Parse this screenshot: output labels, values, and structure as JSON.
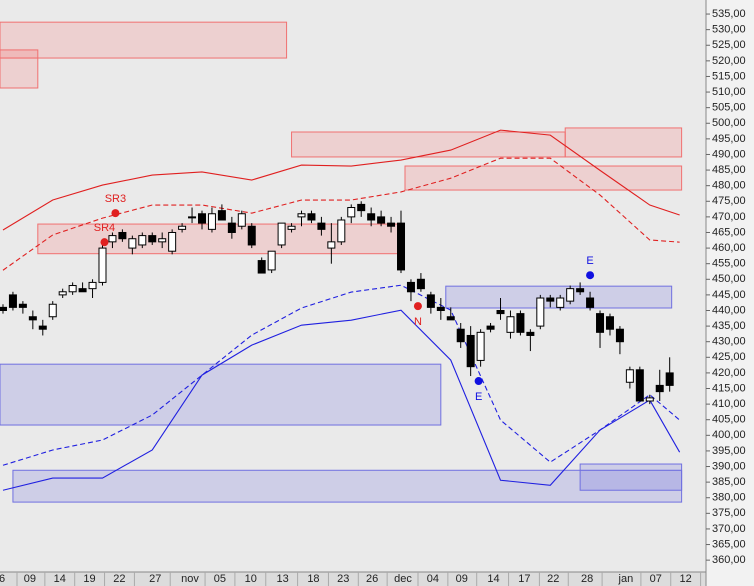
{
  "chart_data": {
    "type": "candlestick",
    "xlim": [
      -0.3,
      70.65
    ],
    "ylim": [
      356.2,
      539.5
    ],
    "yticks": [
      {
        "value": 360,
        "label": "360,00"
      },
      {
        "value": 365,
        "label": "365,00"
      },
      {
        "value": 370,
        "label": "370,00"
      },
      {
        "value": 375,
        "label": "375,00"
      },
      {
        "value": 380,
        "label": "380,00"
      },
      {
        "value": 385,
        "label": "385,00"
      },
      {
        "value": 390,
        "label": "390,00"
      },
      {
        "value": 395,
        "label": "395,00"
      },
      {
        "value": 400,
        "label": "400,00"
      },
      {
        "value": 405,
        "label": "405,00"
      },
      {
        "value": 410,
        "label": "410,00"
      },
      {
        "value": 415,
        "label": "415,00"
      },
      {
        "value": 420,
        "label": "420,00"
      },
      {
        "value": 425,
        "label": "425,00"
      },
      {
        "value": 430,
        "label": "430,00"
      },
      {
        "value": 435,
        "label": "435,00"
      },
      {
        "value": 440,
        "label": "440,00"
      },
      {
        "value": 445,
        "label": "445,00"
      },
      {
        "value": 450,
        "label": "450,00"
      },
      {
        "value": 455,
        "label": "455,00"
      },
      {
        "value": 460,
        "label": "460,00"
      },
      {
        "value": 465,
        "label": "465,00"
      },
      {
        "value": 470,
        "label": "470,00"
      },
      {
        "value": 475,
        "label": "475,00"
      },
      {
        "value": 480,
        "label": "480,00"
      },
      {
        "value": 485,
        "label": "485,00"
      },
      {
        "value": 490,
        "label": "490,00"
      },
      {
        "value": 495,
        "label": "495,00"
      },
      {
        "value": 500,
        "label": "500,00"
      },
      {
        "value": 505,
        "label": "505,00"
      },
      {
        "value": 510,
        "label": "510,00"
      },
      {
        "value": 515,
        "label": "515,00"
      },
      {
        "value": 520,
        "label": "520,00"
      },
      {
        "value": 525,
        "label": "525,00"
      },
      {
        "value": 530,
        "label": "530,00"
      },
      {
        "value": 535,
        "label": "535,00"
      }
    ],
    "xticks": [
      {
        "value": -0.1,
        "label": "6"
      },
      {
        "value": 2.7,
        "label": "09"
      },
      {
        "value": 5.7,
        "label": "14"
      },
      {
        "value": 8.7,
        "label": "19"
      },
      {
        "value": 11.7,
        "label": "22"
      },
      {
        "value": 15.3,
        "label": "27"
      },
      {
        "value": 18.8,
        "label": "nov"
      },
      {
        "value": 21.8,
        "label": "05"
      },
      {
        "value": 24.9,
        "label": "10"
      },
      {
        "value": 28.1,
        "label": "13"
      },
      {
        "value": 31.2,
        "label": "18"
      },
      {
        "value": 34.2,
        "label": "23"
      },
      {
        "value": 37.1,
        "label": "26"
      },
      {
        "value": 40.2,
        "label": "dec"
      },
      {
        "value": 43.2,
        "label": "04"
      },
      {
        "value": 46.1,
        "label": "09"
      },
      {
        "value": 49.3,
        "label": "14"
      },
      {
        "value": 52.4,
        "label": "17"
      },
      {
        "value": 55.3,
        "label": "22"
      },
      {
        "value": 58.7,
        "label": "28"
      },
      {
        "value": 62.6,
        "label": "jan"
      },
      {
        "value": 65.6,
        "label": "07"
      },
      {
        "value": 68.6,
        "label": "12"
      }
    ],
    "candles": {
      "open": [
        441,
        445,
        442,
        438,
        435,
        438,
        445,
        446,
        447,
        447,
        449,
        462,
        465,
        460,
        461,
        464,
        462,
        459,
        466,
        470,
        471,
        466,
        472,
        468,
        467,
        467,
        456,
        453,
        461,
        466,
        470,
        471,
        468,
        460,
        462,
        470,
        474,
        471,
        470,
        468,
        468,
        449,
        450,
        445,
        441,
        438,
        434,
        432,
        424,
        435,
        440,
        433,
        439,
        433,
        435,
        444,
        441,
        443,
        447,
        444,
        439,
        438,
        434,
        417,
        421,
        411,
        416,
        420
      ],
      "high": [
        442,
        446,
        443,
        440,
        437,
        443,
        447,
        449,
        449,
        450,
        461,
        465,
        466,
        464,
        465,
        465,
        465,
        466,
        468,
        473,
        472,
        473,
        474,
        470,
        472,
        468,
        457,
        459,
        468,
        468,
        472,
        472,
        470,
        468,
        470,
        474,
        475,
        473,
        472,
        470,
        472,
        450,
        452,
        446,
        444,
        441,
        436,
        435,
        434,
        436,
        444,
        440,
        440,
        434,
        445,
        445,
        445,
        448,
        449,
        446,
        440,
        439,
        435,
        422,
        422,
        413,
        421,
        425
      ],
      "low": [
        439,
        440,
        439,
        434,
        432,
        437,
        444,
        445,
        446,
        444,
        448,
        460,
        462,
        458,
        460,
        461,
        460,
        458,
        465,
        468,
        466,
        465,
        469,
        463,
        466,
        460,
        452,
        452,
        460,
        465,
        467,
        468,
        464,
        455,
        461,
        468,
        470,
        467,
        467,
        465,
        452,
        443,
        446,
        439,
        437,
        437,
        428,
        419,
        422,
        433,
        437,
        431,
        432,
        427,
        434,
        441,
        440,
        442,
        445,
        440,
        428,
        432,
        426,
        415,
        411,
        410,
        411,
        414
      ],
      "close": [
        440,
        441,
        441,
        437,
        434,
        442,
        446,
        448,
        446,
        449,
        460,
        464,
        463,
        463,
        464,
        462,
        463,
        465,
        467,
        470,
        468,
        471,
        469,
        465,
        471,
        461,
        452,
        459,
        468,
        467,
        471,
        469,
        466,
        462,
        469,
        473,
        472,
        469,
        468,
        467,
        453,
        446,
        447,
        441,
        440,
        437,
        430,
        422,
        433,
        434,
        439,
        438,
        433,
        432,
        444,
        443,
        444,
        447,
        446,
        441,
        433,
        434,
        430,
        421,
        411,
        412,
        414,
        416
      ]
    },
    "lines": [
      {
        "color": "#e02020",
        "dash": false,
        "x": [
          0,
          5,
          10,
          15,
          20,
          25,
          30,
          35,
          40,
          45,
          50,
          55,
          60,
          65,
          68
        ],
        "values": [
          465.8,
          475.4,
          480.2,
          483.4,
          484.4,
          481.8,
          486.6,
          486.3,
          488.2,
          491.4,
          497.8,
          496.2,
          484.9,
          473.8,
          470.6
        ]
      },
      {
        "color": "#e02020",
        "dash": true,
        "x": [
          0,
          5,
          10,
          15,
          20,
          25,
          30,
          35,
          40,
          45,
          50,
          55,
          60,
          65,
          68
        ],
        "values": [
          452.9,
          464.2,
          469.6,
          473.8,
          473.8,
          471.2,
          475.4,
          475.4,
          478,
          482.4,
          488.8,
          488.8,
          477,
          462.6,
          461.9
        ]
      },
      {
        "color": "#2020e0",
        "dash": true,
        "x": [
          0,
          5,
          10,
          15,
          20,
          25,
          30,
          35,
          40,
          45,
          50,
          55,
          60,
          65,
          68
        ],
        "values": [
          390.4,
          395.3,
          398.5,
          406.5,
          419.3,
          432.1,
          440.8,
          445.9,
          448.1,
          440.1,
          404.9,
          391.4,
          401.7,
          413,
          404.9
        ]
      },
      {
        "color": "#2020e0",
        "dash": false,
        "x": [
          0,
          5,
          10,
          15,
          20,
          25,
          30,
          35,
          40,
          45,
          50,
          55,
          60,
          65,
          68
        ],
        "values": [
          382.4,
          386.3,
          386.3,
          395.3,
          419.3,
          428.9,
          435.3,
          436.9,
          440.1,
          424.1,
          385.6,
          384,
          401.7,
          411.3,
          394.6
        ]
      }
    ],
    "zones": [
      {
        "color": "red",
        "x": [
          -0.3,
          28.5
        ],
        "range": [
          532.4,
          520.9
        ]
      },
      {
        "color": "red",
        "x": [
          -0.3,
          3.5
        ],
        "range": [
          523.5,
          511.3
        ]
      },
      {
        "color": "red",
        "x": [
          3.5,
          40
        ],
        "range": [
          467.7,
          458.2
        ]
      },
      {
        "color": "red",
        "x": [
          29,
          56.5
        ],
        "range": [
          497.2,
          489.2
        ]
      },
      {
        "color": "red",
        "x": [
          56.5,
          68.2
        ],
        "range": [
          498.5,
          489.2
        ]
      },
      {
        "color": "red",
        "x": [
          40.4,
          68.2
        ],
        "range": [
          486.3,
          478.6
        ]
      },
      {
        "color": "blue",
        "x": [
          -0.3,
          44
        ],
        "range": [
          422.8,
          403.3
        ]
      },
      {
        "color": "blue",
        "x": [
          44.5,
          67.2
        ],
        "range": [
          447.8,
          440.8
        ]
      },
      {
        "color": "blue",
        "x": [
          1,
          68.2
        ],
        "range": [
          388.8,
          378.6
        ]
      },
      {
        "color": "blue",
        "x": [
          58,
          68.2
        ],
        "range": [
          390.8,
          382.4
        ]
      }
    ],
    "markers": [
      {
        "label": "SR3",
        "color": "#e02020",
        "x": 11.3,
        "y": 471.2,
        "pos": "above"
      },
      {
        "label": "SR4",
        "color": "#e02020",
        "x": 10.2,
        "y": 461.9,
        "pos": "above"
      },
      {
        "label": "N",
        "color": "#e02020",
        "x": 41.7,
        "y": 441.4,
        "pos": "below"
      },
      {
        "label": "E",
        "color": "#1010e0",
        "x": 59,
        "y": 451.3,
        "pos": "above"
      },
      {
        "label": "E",
        "color": "#1010e0",
        "x": 47.8,
        "y": 417.4,
        "pos": "below"
      }
    ]
  }
}
